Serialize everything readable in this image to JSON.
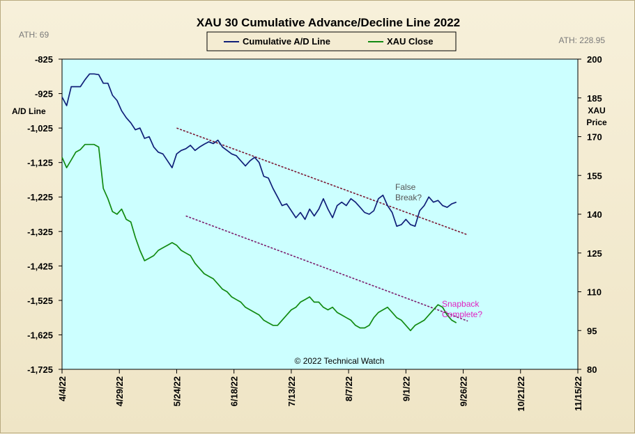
{
  "chart_data": {
    "type": "line",
    "title": "XAU 30 Cumulative Advance/Decline Line 2022",
    "credit": "© 2022 Technical Watch",
    "left_axis": {
      "label_line1": "A/D Line",
      "ylim": [
        -1725,
        -825
      ],
      "ticks": [
        "-825",
        "-925",
        "-1,025",
        "-1,125",
        "-1,225",
        "-1,325",
        "-1,425",
        "-1,525",
        "-1,625",
        "-1,725"
      ],
      "tick_values": [
        -825,
        -925,
        -1025,
        -1125,
        -1225,
        -1325,
        -1425,
        -1525,
        -1625,
        -1725
      ],
      "ath": "ATH: 69"
    },
    "right_axis": {
      "label_line1": "XAU",
      "label_line2": "Price",
      "ylim": [
        80,
        200
      ],
      "ticks": [
        "200",
        "185",
        "170",
        "155",
        "140",
        "125",
        "110",
        "95",
        "80"
      ],
      "tick_values": [
        200,
        185,
        170,
        155,
        140,
        125,
        110,
        95,
        80
      ],
      "ath": "ATH: 228.95"
    },
    "x_axis": {
      "tick_labels": [
        "4/4/22",
        "4/29/22",
        "5/24/22",
        "6/18/22",
        "7/13/22",
        "8/7/22",
        "9/1/22",
        "9/26/22",
        "10/21/22",
        "11/15/22"
      ],
      "range_days": [
        0,
        225
      ]
    },
    "legend": {
      "position": "top-center",
      "entries": [
        {
          "label": "Cumulative A/D Line",
          "color": "#101f78"
        },
        {
          "label": "XAU Close",
          "color": "#118a11"
        }
      ]
    },
    "series": [
      {
        "name": "Cumulative A/D Line",
        "axis": "left",
        "color": "#101f78",
        "days": [
          0,
          2,
          4,
          6,
          8,
          10,
          12,
          14,
          16,
          18,
          20,
          22,
          24,
          26,
          28,
          30,
          32,
          34,
          36,
          38,
          40,
          42,
          44,
          46,
          48,
          50,
          52,
          54,
          56,
          58,
          60,
          62,
          64,
          66,
          68,
          70,
          72,
          74,
          76,
          78,
          80,
          82,
          84,
          86,
          88,
          90,
          92,
          94,
          96,
          98,
          100,
          102,
          104,
          106,
          108,
          110,
          112,
          114,
          116,
          118,
          120,
          122,
          124,
          126,
          128,
          130,
          132,
          134,
          136,
          138,
          140,
          142,
          144,
          146,
          148,
          150,
          152,
          154,
          156,
          158,
          160,
          162,
          164,
          166,
          168,
          170,
          172
        ],
        "values": [
          -935,
          -960,
          -905,
          -905,
          -905,
          -885,
          -868,
          -868,
          -870,
          -895,
          -895,
          -930,
          -945,
          -975,
          -995,
          -1010,
          -1030,
          -1025,
          -1055,
          -1050,
          -1080,
          -1095,
          -1100,
          -1120,
          -1140,
          -1100,
          -1090,
          -1085,
          -1075,
          -1090,
          -1080,
          -1072,
          -1065,
          -1070,
          -1060,
          -1080,
          -1090,
          -1100,
          -1105,
          -1120,
          -1135,
          -1120,
          -1110,
          -1125,
          -1165,
          -1170,
          -1200,
          -1225,
          -1250,
          -1245,
          -1265,
          -1285,
          -1270,
          -1290,
          -1260,
          -1280,
          -1260,
          -1230,
          -1260,
          -1285,
          -1250,
          -1240,
          -1250,
          -1230,
          -1240,
          -1255,
          -1270,
          -1275,
          -1265,
          -1230,
          -1220,
          -1250,
          -1270,
          -1310,
          -1305,
          -1290,
          -1305,
          -1310,
          -1265,
          -1250,
          -1225,
          -1240,
          -1235,
          -1250,
          -1255,
          -1245,
          -1240
        ]
      },
      {
        "name": "XAU Close",
        "axis": "right",
        "color": "#118a11",
        "days": [
          0,
          2,
          4,
          6,
          8,
          10,
          12,
          14,
          16,
          18,
          20,
          22,
          24,
          26,
          28,
          30,
          32,
          34,
          36,
          38,
          40,
          42,
          44,
          46,
          48,
          50,
          52,
          54,
          56,
          58,
          60,
          62,
          64,
          66,
          68,
          70,
          72,
          74,
          76,
          78,
          80,
          82,
          84,
          86,
          88,
          90,
          92,
          94,
          96,
          98,
          100,
          102,
          104,
          106,
          108,
          110,
          112,
          114,
          116,
          118,
          120,
          122,
          124,
          126,
          128,
          130,
          132,
          134,
          136,
          138,
          140,
          142,
          144,
          146,
          148,
          150,
          152,
          154,
          156,
          158,
          160,
          162,
          164,
          166,
          168,
          170,
          172
        ],
        "values": [
          162,
          158,
          161,
          164,
          165,
          167,
          167,
          167,
          166,
          150,
          146,
          141,
          140,
          142,
          138,
          137,
          131,
          126,
          122,
          123,
          124,
          126,
          127,
          128,
          129,
          128,
          126,
          125,
          124,
          121,
          119,
          117,
          116,
          115,
          113,
          111,
          110,
          108,
          107,
          106,
          104,
          103,
          102,
          101,
          99,
          98,
          97,
          97,
          99,
          101,
          103,
          104,
          106,
          107,
          108,
          106,
          106,
          104,
          103,
          104,
          102,
          101,
          100,
          99,
          97,
          96,
          96,
          97,
          100,
          102,
          103,
          104,
          102,
          100,
          99,
          97,
          95,
          97,
          98,
          99,
          101,
          103,
          105,
          104,
          101,
          99,
          98
        ]
      }
    ],
    "trendlines": [
      {
        "color": "#7a1530",
        "start": {
          "day": 50,
          "value": -1025
        },
        "end": {
          "day": 177,
          "value": -1335
        }
      },
      {
        "color": "#7a1a6a",
        "start": {
          "day": 54,
          "value": -1280
        },
        "end": {
          "day": 177,
          "value": -1585
        }
      }
    ],
    "annotations": [
      {
        "text_line1": "False",
        "text_line2": "Break?",
        "color": "#555555"
      },
      {
        "text_line1": "Snapback",
        "text_line2": "Complete?",
        "color": "#e020c0"
      }
    ]
  }
}
